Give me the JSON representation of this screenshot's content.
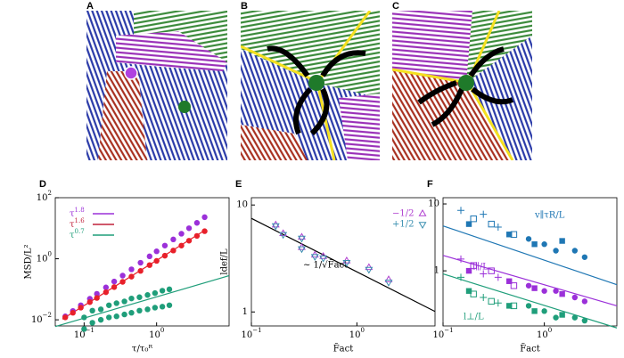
{
  "snapshots": [
    {
      "label": "A"
    },
    {
      "label": "B"
    },
    {
      "label": "C"
    }
  ],
  "chart_data": [
    {
      "type": "scatter",
      "label": "D",
      "xlabel": "τ/τ₀ᴿ",
      "ylabel": "MSD/L²",
      "xscale": "log",
      "yscale": "log",
      "xlim": [
        0.04,
        10
      ],
      "ylim": [
        0.0063,
        100
      ],
      "xticks": [
        {
          "value": 0.1,
          "label": "10",
          "exponent": "−1"
        },
        {
          "value": 1,
          "label": "10",
          "exponent": "0"
        }
      ],
      "yticks": [
        {
          "value": 0.01,
          "label": "10",
          "exponent": "−2"
        },
        {
          "value": 1,
          "label": "10",
          "exponent": "0"
        },
        {
          "value": 100,
          "label": "10",
          "exponent": "2"
        }
      ],
      "series": [
        {
          "color": "#9b30d9",
          "marker": "circle",
          "x": [
            0.055,
            0.07,
            0.09,
            0.12,
            0.15,
            0.2,
            0.26,
            0.34,
            0.45,
            0.6,
            0.8,
            1.0,
            1.3,
            1.7,
            2.2,
            2.8,
            3.6,
            4.6
          ],
          "values": [
            0.013,
            0.0195,
            0.03,
            0.049,
            0.071,
            0.115,
            0.18,
            0.28,
            0.45,
            0.74,
            1.2,
            1.75,
            2.7,
            4.3,
            6.6,
            10,
            15,
            23
          ]
        },
        {
          "color": "#e8202a",
          "marker": "circle",
          "x": [
            0.055,
            0.07,
            0.09,
            0.12,
            0.15,
            0.2,
            0.26,
            0.34,
            0.45,
            0.6,
            0.8,
            1.0,
            1.3,
            1.7,
            2.2,
            2.8,
            3.6,
            4.6
          ],
          "values": [
            0.012,
            0.017,
            0.025,
            0.038,
            0.052,
            0.08,
            0.118,
            0.175,
            0.26,
            0.4,
            0.62,
            0.85,
            1.26,
            1.86,
            2.7,
            3.9,
            5.6,
            8.0
          ]
        },
        {
          "color": "#1f9e7a",
          "marker": "circle",
          "x": [
            0.1,
            0.13,
            0.17,
            0.22,
            0.28,
            0.36,
            0.45,
            0.58,
            0.75,
            0.95,
            1.2,
            1.5,
            0.1,
            0.13,
            0.17,
            0.22,
            0.28,
            0.36,
            0.45,
            0.58,
            0.75,
            0.95,
            1.2,
            1.5
          ],
          "values": [
            0.012,
            0.02,
            0.022,
            0.03,
            0.035,
            0.04,
            0.05,
            0.055,
            0.065,
            0.075,
            0.09,
            0.1,
            0.005,
            0.008,
            0.01,
            0.012,
            0.013,
            0.015,
            0.017,
            0.02,
            0.022,
            0.025,
            0.027,
            0.03
          ]
        }
      ],
      "fit_lines": [
        {
          "color": "#e8202a",
          "x": [
            0.05,
            4.6
          ],
          "values": [
            0.0105,
            8.5
          ]
        },
        {
          "color": "#1f9e7a",
          "x": [
            0.04,
            10
          ],
          "values": [
            0.006,
            0.28
          ]
        }
      ],
      "legend": [
        {
          "name": "τ",
          "exponent": "1.8",
          "color": "#9b30d9"
        },
        {
          "name": "τ",
          "exponent": "1.6",
          "color": "#c0203a"
        },
        {
          "name": "τ",
          "exponent": "0.7",
          "color": "#1f9e7a"
        }
      ]
    },
    {
      "type": "scatter",
      "label": "E",
      "xlabel": "F̃act",
      "ylabel": "ldef/L",
      "xscale": "log",
      "yscale": "log",
      "xlim": [
        0.1,
        5.5
      ],
      "ylim": [
        0.74,
        11.7
      ],
      "xticks": [
        {
          "value": 0.1,
          "label": "10",
          "exponent": "−1"
        },
        {
          "value": 1,
          "label": "10",
          "exponent": "0"
        }
      ],
      "yticks": [
        1,
        10
      ],
      "series": [
        {
          "name": "−1/2",
          "color": "#b040d0",
          "marker": "triangle-up",
          "x": [
            0.17,
            0.2,
            0.3,
            0.3,
            0.4,
            0.48,
            0.8,
            1.3,
            2.0
          ],
          "values": [
            6.5,
            5.4,
            4.0,
            5.0,
            3.4,
            3.3,
            3.0,
            2.6,
            2.0
          ]
        },
        {
          "name": "+1/2",
          "color": "#3a8fb0",
          "marker": "triangle-down",
          "x": [
            0.17,
            0.2,
            0.3,
            0.3,
            0.4,
            0.48,
            0.8,
            1.3,
            2.0
          ],
          "values": [
            6.4,
            5.3,
            3.9,
            4.9,
            3.3,
            3.2,
            2.9,
            2.5,
            1.9
          ]
        }
      ],
      "fit_lines": [
        {
          "color": "#000000",
          "label": "∼ 1/√F̃act",
          "x": [
            0.1,
            5.5
          ],
          "values": [
            7.5,
            1.01
          ]
        }
      ]
    },
    {
      "type": "scatter",
      "label": "F",
      "xlabel": "F̃act",
      "xscale": "log",
      "yscale": "log",
      "xlim": [
        0.1,
        5.2
      ],
      "ylim": [
        0.15,
        12.4
      ],
      "xticks": [
        {
          "value": 0.1,
          "label": "10",
          "exponent": "−1"
        },
        {
          "value": 1,
          "label": "10",
          "exponent": "0"
        }
      ],
      "yticks": [
        1,
        10
      ],
      "series": [
        {
          "name": "v∥τR/L",
          "color": "#1f77b4",
          "markers": [
            "plus",
            "square",
            "open-square",
            "plus",
            "open-square",
            "plus",
            "square",
            "open-square",
            "circle",
            "square",
            "circle",
            "circle",
            "square",
            "circle",
            "circle"
          ],
          "x": [
            0.15,
            0.18,
            0.2,
            0.25,
            0.3,
            0.35,
            0.45,
            0.5,
            0.7,
            0.8,
            1.0,
            1.3,
            1.5,
            2.0,
            2.5
          ],
          "values": [
            8,
            5,
            6,
            7,
            5,
            4.5,
            3.5,
            3.5,
            3,
            2.5,
            2.5,
            2,
            2.8,
            2,
            1.6
          ]
        },
        {
          "name": "l∥/L",
          "color": "#9b30d9",
          "markers": [
            "plus",
            "square",
            "open-square",
            "plus",
            "open-square",
            "plus",
            "square",
            "open-square",
            "circle",
            "square",
            "circle",
            "circle",
            "square",
            "circle",
            "circle"
          ],
          "x": [
            0.15,
            0.18,
            0.2,
            0.25,
            0.3,
            0.35,
            0.45,
            0.5,
            0.7,
            0.8,
            1.0,
            1.3,
            1.5,
            2.0,
            2.5
          ],
          "values": [
            1.5,
            1.0,
            1.2,
            0.9,
            1.0,
            0.8,
            0.7,
            0.6,
            0.6,
            0.55,
            0.5,
            0.5,
            0.45,
            0.4,
            0.35
          ]
        },
        {
          "name": "l⊥/L",
          "color": "#1f9e7a",
          "markers": [
            "plus",
            "square",
            "open-square",
            "plus",
            "open-square",
            "plus",
            "square",
            "open-square",
            "circle",
            "square",
            "circle",
            "circle",
            "square",
            "circle",
            "circle"
          ],
          "x": [
            0.15,
            0.18,
            0.2,
            0.25,
            0.3,
            0.35,
            0.45,
            0.5,
            0.7,
            0.8,
            1.0,
            1.3,
            1.5,
            2.0,
            2.5
          ],
          "values": [
            0.8,
            0.5,
            0.45,
            0.4,
            0.35,
            0.33,
            0.3,
            0.3,
            0.3,
            0.25,
            0.25,
            0.2,
            0.22,
            0.2,
            0.18
          ]
        }
      ],
      "fit_lines": [
        {
          "color": "#1f77b4",
          "x": [
            0.1,
            5.2
          ],
          "values": [
            4.7,
            0.62
          ]
        },
        {
          "color": "#9b30d9",
          "x": [
            0.1,
            5.2
          ],
          "values": [
            1.7,
            0.3
          ]
        },
        {
          "color": "#1f9e7a",
          "x": [
            0.1,
            5.2
          ],
          "values": [
            0.9,
            0.14
          ]
        }
      ]
    }
  ]
}
